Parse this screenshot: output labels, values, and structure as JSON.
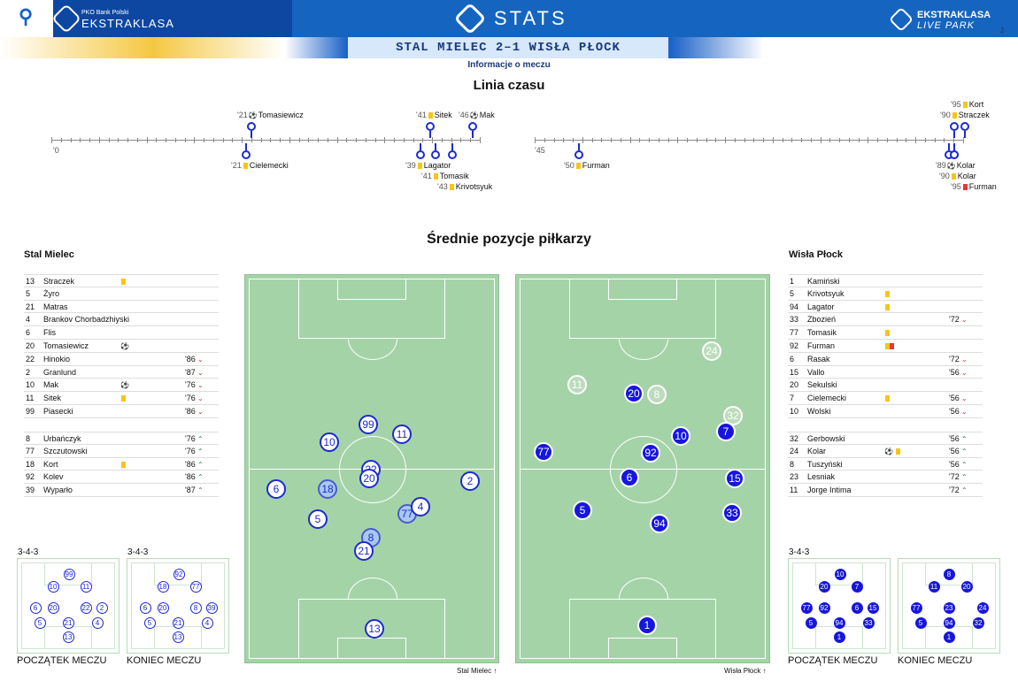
{
  "header": {
    "bank": "PKO Bank Polski",
    "league": "EKSTRAKLASA",
    "stats": "STATS",
    "livepark1": "EKSTRAKLASA",
    "livepark2": "LIVE PARK",
    "page": "2"
  },
  "match": "STAL MIELEC 2–1 WISŁA PŁOCK",
  "subtitle": "Informacje o meczu",
  "timeline_title": "Linia czasu",
  "timeline": {
    "start1": "'0",
    "start2": "'45",
    "above": [
      {
        "min": "'21",
        "icon": "ball",
        "name": "Tomasiewicz"
      },
      {
        "min": "'41",
        "icon": "yellow",
        "name": "Sitek"
      },
      {
        "min": "'46",
        "icon": "ball",
        "name": "Mak"
      },
      {
        "min": "'95",
        "icon": "yellow",
        "name": "Kort"
      },
      {
        "min": "'90",
        "icon": "yellow",
        "name": "Straczek"
      }
    ],
    "below": [
      {
        "min": "'21",
        "icon": "yellow",
        "name": "Cielemecki"
      },
      {
        "min": "'39",
        "icon": "yellow",
        "name": "Lagator"
      },
      {
        "min": "'41",
        "icon": "yellow",
        "name": "Tomasik"
      },
      {
        "min": "'43",
        "icon": "yellow",
        "name": "Krivotsyuk"
      },
      {
        "min": "'50",
        "icon": "yellow",
        "name": "Furman"
      },
      {
        "min": "'89",
        "icon": "ball",
        "name": "Kolar"
      },
      {
        "min": "'90",
        "icon": "yellow",
        "name": "Kolar"
      },
      {
        "min": "'95",
        "icon": "red",
        "name": "Furman"
      }
    ]
  },
  "positions_title": "Średnie pozycje piłkarzy",
  "home": {
    "name": "Stal Mielec",
    "starters": [
      [
        "13",
        "Straczek",
        "yellow",
        ""
      ],
      [
        "5",
        "Żyro",
        "",
        ""
      ],
      [
        "21",
        "Matras",
        "",
        ""
      ],
      [
        "4",
        "Brankov Chorbadzhiyski",
        "",
        ""
      ],
      [
        "6",
        "Flis",
        "",
        ""
      ],
      [
        "20",
        "Tomasiewicz",
        "ball",
        ""
      ],
      [
        "22",
        "Hinokio",
        "",
        "'86"
      ],
      [
        "2",
        "Granlund",
        "",
        "'87"
      ],
      [
        "10",
        "Mak",
        "ball",
        "'76"
      ],
      [
        "11",
        "Sitek",
        "yellow",
        "'76"
      ],
      [
        "99",
        "Piasecki",
        "",
        "'86"
      ]
    ],
    "subs": [
      [
        "8",
        "Urbańczyk",
        "",
        "'76"
      ],
      [
        "77",
        "Szczutowski",
        "",
        "'76"
      ],
      [
        "18",
        "Kort",
        "yellow",
        "'86"
      ],
      [
        "92",
        "Kolev",
        "",
        "'86"
      ],
      [
        "39",
        "Wyparło",
        "",
        "'87"
      ]
    ],
    "formation1": "3-4-3",
    "formation2": "3-4-3",
    "caption1": "POCZĄTEK MECZU",
    "caption2": "KONIEC MECZU",
    "pitch_caption": "Stal Mielec"
  },
  "away": {
    "name": "Wisła Płock",
    "starters": [
      [
        "1",
        "Kamiński",
        "",
        ""
      ],
      [
        "5",
        "Krivotsyuk",
        "yellow",
        ""
      ],
      [
        "94",
        "Lagator",
        "yellow",
        ""
      ],
      [
        "33",
        "Zbozień",
        "",
        "'72"
      ],
      [
        "77",
        "Tomasik",
        "yellow",
        ""
      ],
      [
        "92",
        "Furman",
        "yr",
        ""
      ],
      [
        "6",
        "Rasak",
        "",
        "'72"
      ],
      [
        "15",
        "Vallo",
        "",
        "'56"
      ],
      [
        "20",
        "Sekulski",
        "",
        ""
      ],
      [
        "7",
        "Cielemecki",
        "yellow",
        "'56"
      ],
      [
        "10",
        "Wolski",
        "",
        "'56"
      ]
    ],
    "subs": [
      [
        "32",
        "Gerbowski",
        "",
        "'56"
      ],
      [
        "24",
        "Kolar",
        "ball yellow",
        "'56"
      ],
      [
        "8",
        "Tuszyński",
        "",
        "'56"
      ],
      [
        "23",
        "Lesniak",
        "",
        "'72"
      ],
      [
        "11",
        "Jorge Intima",
        "",
        "'72"
      ]
    ],
    "formation1": "3-4-3",
    "formation2": "",
    "caption1": "POCZĄTEK MECZU",
    "caption2": "KONIEC MECZU",
    "pitch_caption": "Wisła Płock"
  },
  "colors": {
    "accent": "#1c2ad0",
    "pitch": "#a5d3a8",
    "header": "#1565c0"
  },
  "home_dots": [
    [
      "99",
      "w"
    ],
    [
      "11",
      "w"
    ],
    [
      "10",
      "w"
    ],
    [
      "22",
      "w"
    ],
    [
      "20",
      "w"
    ],
    [
      "2",
      "w"
    ],
    [
      "6",
      "w"
    ],
    [
      "18",
      "wl"
    ],
    [
      "5",
      "w"
    ],
    [
      "77",
      "wl"
    ],
    [
      "4",
      "w"
    ],
    [
      "8",
      "wl"
    ],
    [
      "21",
      "w"
    ],
    [
      "13",
      "w"
    ]
  ],
  "away_dots": [
    [
      "24",
      "g"
    ],
    [
      "11",
      "g"
    ],
    [
      "20",
      "b"
    ],
    [
      "8",
      "g"
    ],
    [
      "32",
      "g"
    ],
    [
      "7",
      "b"
    ],
    [
      "10",
      "b"
    ],
    [
      "77",
      "b"
    ],
    [
      "92",
      "b"
    ],
    [
      "6",
      "b"
    ],
    [
      "15",
      "b"
    ],
    [
      "5",
      "b"
    ],
    [
      "33",
      "b"
    ],
    [
      "94",
      "b"
    ],
    [
      "1",
      "b"
    ]
  ],
  "mini_home_start": [
    "99",
    "10",
    "11",
    "6",
    "20",
    "22",
    "2",
    "5",
    "21",
    "4",
    "13"
  ],
  "mini_home_end": [
    "92",
    "18",
    "77",
    "6",
    "20",
    "8",
    "39",
    "5",
    "21",
    "4",
    "13"
  ],
  "mini_away_start": [
    "10",
    "20",
    "7",
    "77",
    "92",
    "6",
    "15",
    "5",
    "94",
    "33",
    "1"
  ],
  "mini_away_end": [
    "8",
    "11",
    "20",
    "77",
    "23",
    "24",
    "5",
    "94",
    "32",
    "1"
  ]
}
